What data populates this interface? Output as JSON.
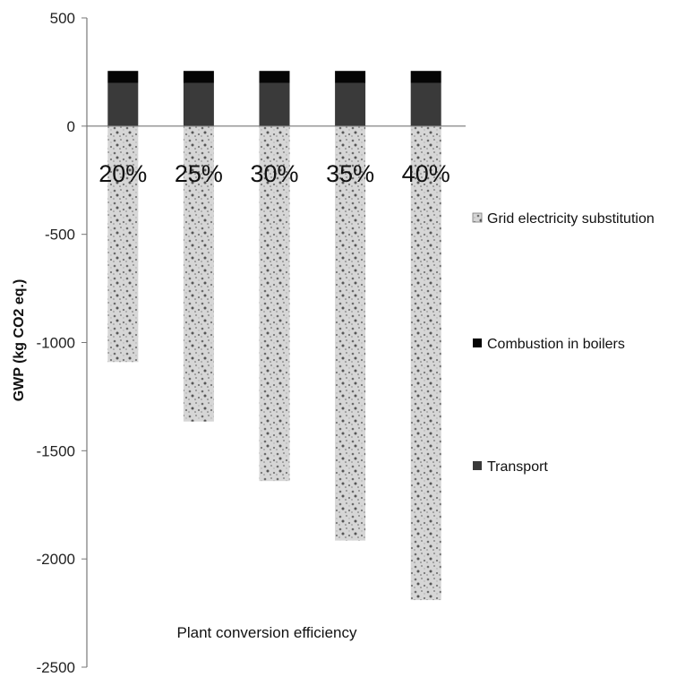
{
  "chart_data": {
    "type": "bar",
    "stacked": true,
    "title": "",
    "xlabel": "Plant conversion efficiency",
    "ylabel": "GWP (kg CO2 eq.)",
    "ylim": [
      -2500,
      500
    ],
    "yticks": [
      500,
      0,
      -500,
      -1000,
      -1500,
      -2000,
      -2500
    ],
    "categories": [
      "20%",
      "25%",
      "30%",
      "35%",
      "40%"
    ],
    "series": [
      {
        "name": "Transport",
        "values": [
          200,
          200,
          200,
          200,
          200
        ],
        "color": "#3a3a3a",
        "pattern": "solid"
      },
      {
        "name": "Combustion in boilers",
        "values": [
          55,
          55,
          55,
          55,
          55
        ],
        "color": "#050505",
        "pattern": "solid"
      },
      {
        "name": "Grid electricity substitution",
        "values": [
          -1090,
          -1365,
          -1640,
          -1915,
          -2190
        ],
        "color": "#8a8a8a",
        "pattern": "speckle"
      }
    ],
    "legend": {
      "position": "right",
      "order": [
        "Grid electricity substitution",
        "Combustion in boilers",
        "Transport"
      ]
    },
    "grid": false
  }
}
